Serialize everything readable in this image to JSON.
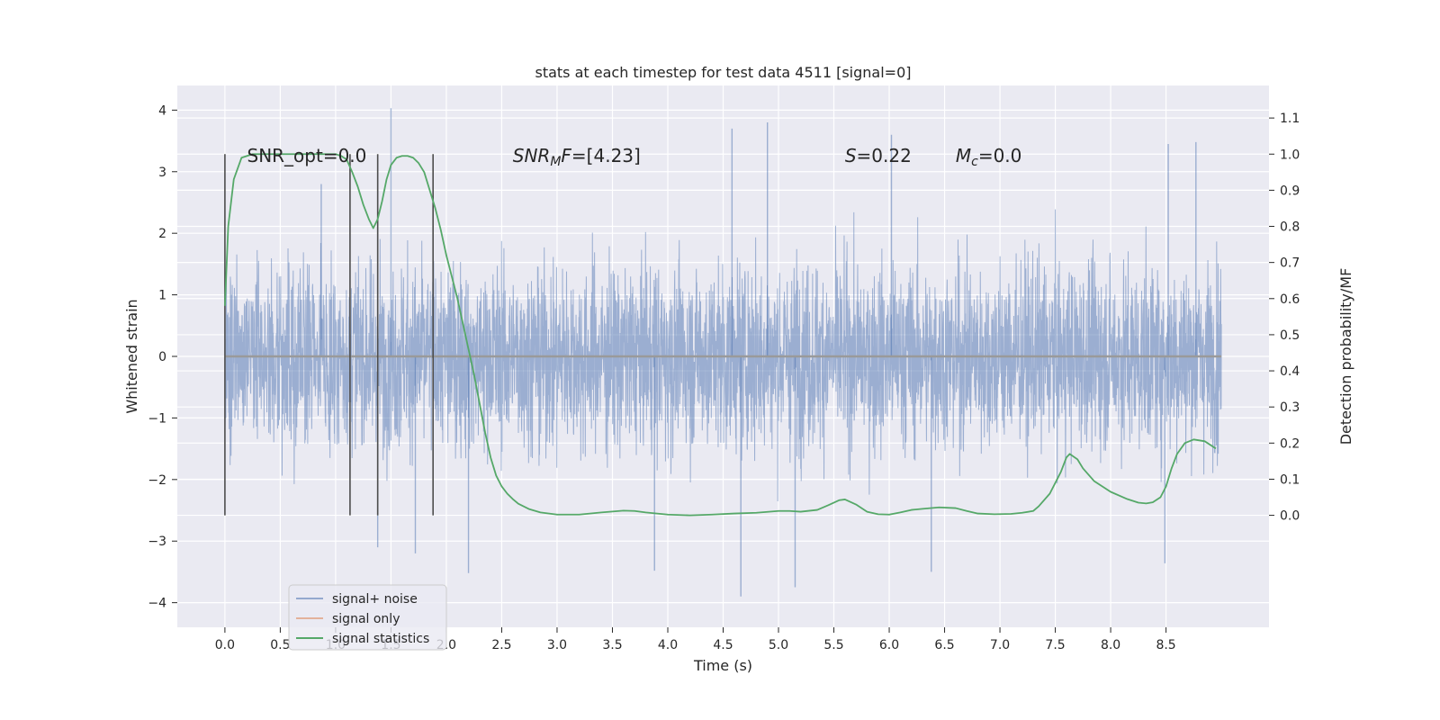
{
  "chart_data": {
    "type": "line",
    "title": "stats at each timestep for test data 4511 [signal=0]",
    "xlabel": "Time (s)",
    "ylabel": "Whitened strain",
    "ylabel_right": "Detection probability/MF",
    "xlim": [
      -0.43,
      9.43
    ],
    "ylim": [
      -4.4,
      4.4
    ],
    "ylim_right": [
      -0.31,
      1.19
    ],
    "x_ticks": [
      0.0,
      0.5,
      1.0,
      1.5,
      2.0,
      2.5,
      3.0,
      3.5,
      4.0,
      4.5,
      5.0,
      5.5,
      6.0,
      6.5,
      7.0,
      7.5,
      8.0,
      8.5
    ],
    "x_tick_labels": [
      "0.0",
      "0.5",
      "1.0",
      "1.5",
      "2.0",
      "2.5",
      "3.0",
      "3.5",
      "4.0",
      "4.5",
      "5.0",
      "5.5",
      "6.0",
      "6.5",
      "7.0",
      "7.5",
      "8.0",
      "8.5"
    ],
    "y_ticks": [
      4,
      3,
      2,
      1,
      0,
      -1,
      -2,
      -3,
      -4
    ],
    "y_tick_labels": [
      "4",
      "3",
      "2",
      "1",
      "0",
      "−1",
      "−2",
      "−3",
      "−4"
    ],
    "y_right_ticks": [
      1.1,
      1.0,
      0.9,
      0.8,
      0.7,
      0.6,
      0.5,
      0.4,
      0.3,
      0.2,
      0.1,
      0.0
    ],
    "y_right_tick_labels": [
      "1.1",
      "1.0",
      "0.9",
      "0.8",
      "0.7",
      "0.6",
      "0.5",
      "0.4",
      "0.3",
      "0.2",
      "0.1",
      "0.0"
    ],
    "grid": true,
    "annotations": [
      {
        "text_html": "SNR_opt=0.0",
        "x": 0.2
      },
      {
        "text_html": "<tspan font-style='italic'>SNR</tspan><tspan font-style='italic' font-size='14' dy='4'>M</tspan><tspan font-style='italic' dy='-4'>F</tspan>=[4.23]",
        "x": 2.6
      },
      {
        "text_html": "<tspan font-style='italic'>S</tspan>=0.22",
        "x": 5.6
      },
      {
        "text_html": "<tspan font-style='italic'>M</tspan><tspan font-style='italic' font-size='14' dy='4'>c</tspan><tspan dy='-4'>=0.0</tspan>",
        "x": 6.6
      }
    ],
    "annotation_texts": [
      "SNR_opt=0.0",
      "SNR_MF=[4.23]",
      "S=0.22",
      "M_c=0.0"
    ],
    "vertical_markers": [
      0.0,
      1.13,
      1.38,
      1.88
    ],
    "vertical_marker_range_right": [
      0.0,
      1.0
    ],
    "series": [
      {
        "name": "signal+ noise",
        "axis": "left",
        "color": "#4c72b0",
        "opacity": 0.5,
        "x_range": [
          0.0,
          9.0
        ],
        "envelope": {
          "typical_band": [
            -1.3,
            1.3
          ],
          "peak_band": [
            -3.0,
            3.3
          ]
        },
        "notable_peaks": [
          {
            "x": 0.87,
            "y": 2.8
          },
          {
            "x": 1.5,
            "y": 4.03
          },
          {
            "x": 4.9,
            "y": 3.8
          },
          {
            "x": 4.58,
            "y": 3.7
          },
          {
            "x": 6.02,
            "y": 3.6
          },
          {
            "x": 8.52,
            "y": 3.45
          },
          {
            "x": 8.77,
            "y": 3.48
          },
          {
            "x": 2.2,
            "y": -3.52
          },
          {
            "x": 4.66,
            "y": -3.9
          },
          {
            "x": 5.15,
            "y": -3.75
          },
          {
            "x": 8.49,
            "y": -3.36
          },
          {
            "x": 3.88,
            "y": -3.48
          },
          {
            "x": 6.38,
            "y": -3.5
          },
          {
            "x": 1.38,
            "y": -3.1
          },
          {
            "x": 1.72,
            "y": -3.2
          }
        ]
      },
      {
        "name": "signal only",
        "axis": "left",
        "color": "#dd8452",
        "x": [
          0.0,
          9.0
        ],
        "y": [
          0.0,
          0.0
        ]
      },
      {
        "name": "signal statistics",
        "axis": "right",
        "color": "#55a868",
        "x": [
          0.0,
          0.03,
          0.08,
          0.15,
          0.25,
          0.4,
          0.6,
          0.8,
          0.9,
          1.0,
          1.05,
          1.1,
          1.15,
          1.2,
          1.25,
          1.3,
          1.34,
          1.38,
          1.42,
          1.46,
          1.5,
          1.55,
          1.6,
          1.65,
          1.7,
          1.75,
          1.8,
          1.85,
          1.9,
          1.95,
          2.0,
          2.05,
          2.1,
          2.15,
          2.2,
          2.25,
          2.3,
          2.35,
          2.4,
          2.45,
          2.5,
          2.55,
          2.6,
          2.65,
          2.75,
          2.85,
          3.0,
          3.2,
          3.4,
          3.6,
          3.7,
          3.8,
          4.0,
          4.2,
          4.4,
          4.6,
          4.8,
          5.0,
          5.1,
          5.2,
          5.35,
          5.45,
          5.55,
          5.6,
          5.7,
          5.8,
          5.9,
          6.0,
          6.1,
          6.2,
          6.3,
          6.45,
          6.6,
          6.7,
          6.8,
          6.95,
          7.1,
          7.2,
          7.3,
          7.35,
          7.45,
          7.55,
          7.6,
          7.63,
          7.7,
          7.75,
          7.85,
          8.0,
          8.15,
          8.25,
          8.32,
          8.38,
          8.45,
          8.5,
          8.55,
          8.6,
          8.67,
          8.75,
          8.85,
          8.95
        ],
        "y": [
          0.58,
          0.8,
          0.93,
          0.99,
          1.0,
          1.0,
          1.0,
          1.0,
          1.0,
          1.0,
          0.995,
          0.985,
          0.95,
          0.91,
          0.86,
          0.82,
          0.795,
          0.82,
          0.87,
          0.93,
          0.97,
          0.99,
          0.995,
          0.995,
          0.99,
          0.975,
          0.95,
          0.9,
          0.85,
          0.79,
          0.72,
          0.66,
          0.6,
          0.53,
          0.46,
          0.39,
          0.31,
          0.23,
          0.16,
          0.11,
          0.08,
          0.06,
          0.045,
          0.032,
          0.017,
          0.008,
          0.002,
          0.002,
          0.008,
          0.013,
          0.012,
          0.008,
          0.002,
          0.0,
          0.002,
          0.005,
          0.007,
          0.012,
          0.012,
          0.01,
          0.015,
          0.028,
          0.042,
          0.044,
          0.03,
          0.01,
          0.003,
          0.002,
          0.008,
          0.015,
          0.018,
          0.022,
          0.02,
          0.012,
          0.005,
          0.003,
          0.004,
          0.007,
          0.012,
          0.025,
          0.06,
          0.12,
          0.16,
          0.17,
          0.155,
          0.13,
          0.095,
          0.065,
          0.045,
          0.035,
          0.033,
          0.036,
          0.05,
          0.08,
          0.13,
          0.17,
          0.2,
          0.21,
          0.205,
          0.185
        ]
      }
    ],
    "legend": {
      "placement": "lower-left",
      "entries": [
        {
          "label": "signal+ noise",
          "color": "#4c72b0"
        },
        {
          "label": "signal only",
          "color": "#dd8452"
        },
        {
          "label": "signal statistics",
          "color": "#55a868"
        }
      ]
    }
  }
}
